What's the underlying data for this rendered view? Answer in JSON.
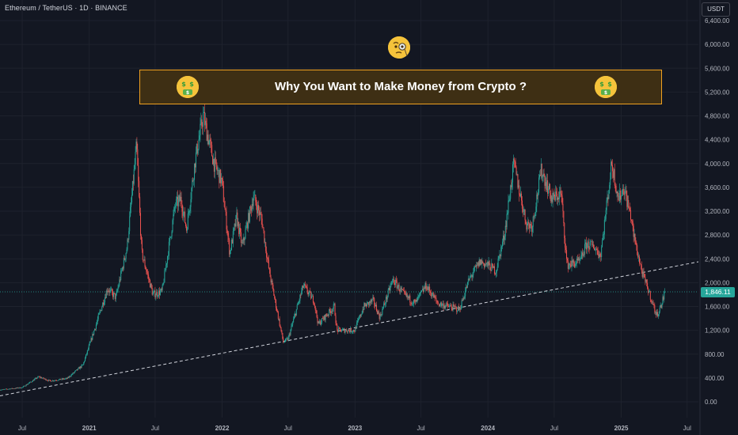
{
  "header": {
    "symbol_title": "Ethereum / TetherUS · 1D · BINANCE",
    "currency": "USDT"
  },
  "banner": {
    "text": "Why You Want to Make Money from Crypto ?",
    "emoji_left": "money-mouth-face-icon",
    "emoji_right": "money-mouth-face-icon",
    "emoji_top": "face-with-monocle-icon"
  },
  "colors": {
    "background": "#131722",
    "up": "#26a69a",
    "down": "#ef5350",
    "banner_border": "#f0a020",
    "banner_fill": "#3e2f14",
    "grid": "#1e222d",
    "trendline": "#d1d4dc"
  },
  "chart_data": {
    "type": "candlestick",
    "title": "Ethereum / TetherUS · 1D · BINANCE",
    "y_unit": "USDT",
    "ylim": [
      0,
      6400
    ],
    "y_ticks": [
      "0.00",
      "400.00",
      "800.00",
      "1,200.00",
      "1,600.00",
      "2,000.00",
      "2,400.00",
      "2,800.00",
      "3,200.00",
      "3,600.00",
      "4,000.00",
      "4,400.00",
      "4,800.00",
      "5,200.00",
      "5,600.00",
      "6,000.00",
      "6,400.00"
    ],
    "y_tick_values": [
      0,
      400,
      800,
      1200,
      1600,
      2000,
      2400,
      2800,
      3200,
      3600,
      4000,
      4400,
      4800,
      5200,
      5600,
      6000,
      6400
    ],
    "x_range": [
      "2020-05-01",
      "2025-08-01"
    ],
    "x_ticks": [
      {
        "label": "Jul",
        "date": "2020-07-01"
      },
      {
        "label": "2021",
        "date": "2021-01-01"
      },
      {
        "label": "Jul",
        "date": "2021-07-01"
      },
      {
        "label": "2022",
        "date": "2022-01-01"
      },
      {
        "label": "Jul",
        "date": "2022-07-01"
      },
      {
        "label": "2023",
        "date": "2023-01-01"
      },
      {
        "label": "Jul",
        "date": "2023-07-01"
      },
      {
        "label": "2024",
        "date": "2024-01-01"
      },
      {
        "label": "Jul",
        "date": "2024-07-01"
      },
      {
        "label": "2025",
        "date": "2025-01-01"
      },
      {
        "label": "Jul",
        "date": "2025-07-01"
      }
    ],
    "last_price": "1,846.11",
    "last_price_value": 1846.11,
    "price_path": [
      [
        "2020-05-01",
        200
      ],
      [
        "2020-07-01",
        240
      ],
      [
        "2020-08-15",
        420
      ],
      [
        "2020-09-15",
        350
      ],
      [
        "2020-11-01",
        390
      ],
      [
        "2020-12-15",
        620
      ],
      [
        "2021-01-20",
        1300
      ],
      [
        "2021-02-20",
        1900
      ],
      [
        "2021-03-15",
        1750
      ],
      [
        "2021-04-15",
        2600
      ],
      [
        "2021-05-11",
        4300
      ],
      [
        "2021-05-25",
        2500
      ],
      [
        "2021-06-25",
        1800
      ],
      [
        "2021-07-20",
        1850
      ],
      [
        "2021-08-25",
        3300
      ],
      [
        "2021-09-10",
        3400
      ],
      [
        "2021-09-25",
        2900
      ],
      [
        "2021-10-20",
        4100
      ],
      [
        "2021-11-10",
        4800
      ],
      [
        "2021-12-10",
        4000
      ],
      [
        "2021-12-31",
        3700
      ],
      [
        "2022-01-22",
        2500
      ],
      [
        "2022-02-10",
        3100
      ],
      [
        "2022-02-25",
        2600
      ],
      [
        "2022-03-28",
        3450
      ],
      [
        "2022-04-20",
        3050
      ],
      [
        "2022-05-10",
        2200
      ],
      [
        "2022-06-18",
        1000
      ],
      [
        "2022-07-01",
        1050
      ],
      [
        "2022-08-12",
        1950
      ],
      [
        "2022-09-10",
        1700
      ],
      [
        "2022-09-22",
        1300
      ],
      [
        "2022-11-05",
        1600
      ],
      [
        "2022-11-12",
        1200
      ],
      [
        "2022-12-31",
        1200
      ],
      [
        "2023-01-25",
        1600
      ],
      [
        "2023-02-20",
        1700
      ],
      [
        "2023-03-10",
        1420
      ],
      [
        "2023-04-15",
        2050
      ],
      [
        "2023-05-15",
        1800
      ],
      [
        "2023-06-15",
        1650
      ],
      [
        "2023-07-15",
        1950
      ],
      [
        "2023-08-17",
        1650
      ],
      [
        "2023-09-15",
        1600
      ],
      [
        "2023-10-15",
        1550
      ],
      [
        "2023-11-10",
        2050
      ],
      [
        "2023-12-10",
        2350
      ],
      [
        "2023-12-31",
        2300
      ],
      [
        "2024-01-23",
        2200
      ],
      [
        "2024-02-15",
        2800
      ],
      [
        "2024-03-12",
        4000
      ],
      [
        "2024-04-15",
        3000
      ],
      [
        "2024-05-01",
        2950
      ],
      [
        "2024-05-27",
        3900
      ],
      [
        "2024-06-25",
        3400
      ],
      [
        "2024-07-20",
        3500
      ],
      [
        "2024-08-05",
        2300
      ],
      [
        "2024-09-10",
        2350
      ],
      [
        "2024-09-28",
        2650
      ],
      [
        "2024-10-20",
        2600
      ],
      [
        "2024-11-05",
        2450
      ],
      [
        "2024-12-06",
        4000
      ],
      [
        "2024-12-25",
        3400
      ],
      [
        "2025-01-08",
        3600
      ],
      [
        "2025-01-28",
        3100
      ],
      [
        "2025-02-04",
        2800
      ],
      [
        "2025-02-28",
        2150
      ],
      [
        "2025-03-15",
        1900
      ],
      [
        "2025-04-08",
        1450
      ],
      [
        "2025-04-20",
        1600
      ],
      [
        "2025-05-01",
        1846
      ]
    ],
    "trendline": {
      "style": "dashed",
      "points": [
        [
          "2020-05-01",
          100
        ],
        [
          "2025-08-01",
          2350
        ]
      ]
    }
  }
}
